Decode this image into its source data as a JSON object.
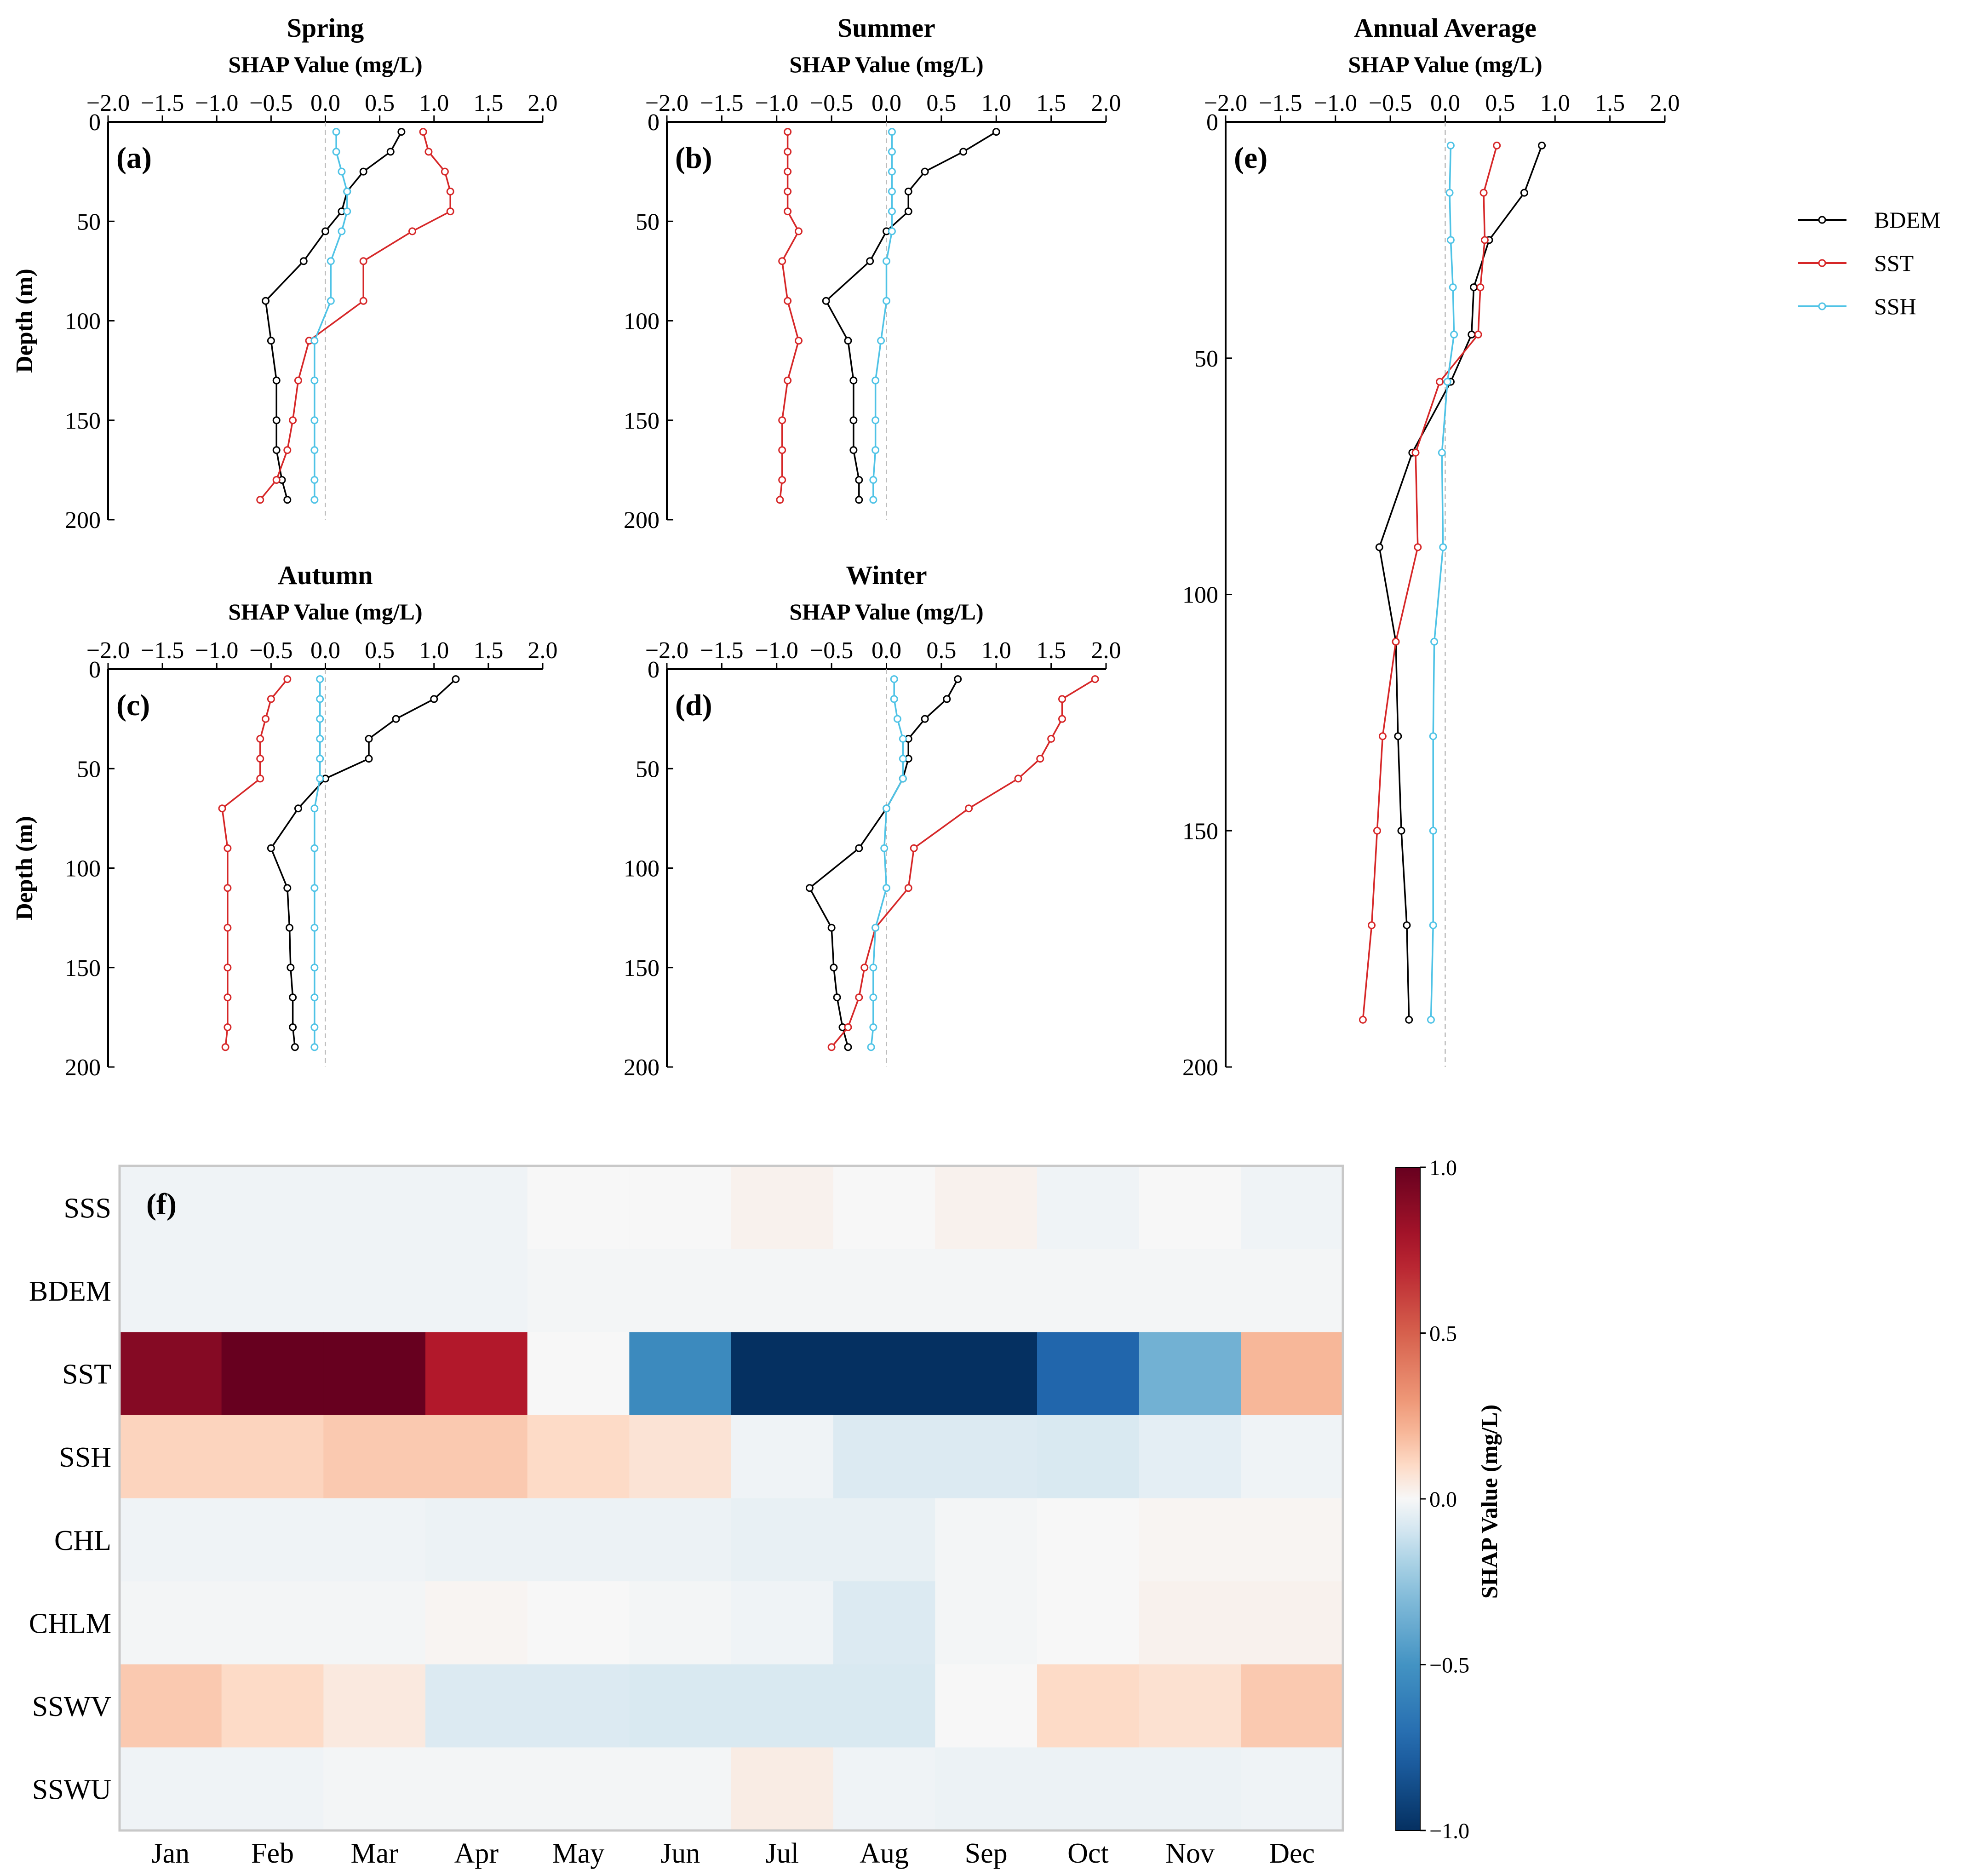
{
  "chart_data": [
    {
      "type": "line",
      "id": "a",
      "panel_label": "(a)",
      "title": "Spring",
      "xlabel": "SHAP Value (mg/L)",
      "ylabel": "Depth (m)",
      "xlim": [
        -2.0,
        2.0
      ],
      "ylim": [
        0,
        200
      ],
      "xticks": [
        "−2.0",
        "−1.5",
        "−1.0",
        "−0.5",
        "0.0",
        "0.5",
        "1.0",
        "1.5",
        "2.0"
      ],
      "yticks": [
        "0",
        "50",
        "100",
        "150",
        "200"
      ],
      "series": [
        {
          "name": "BDEM",
          "color": "#000000",
          "x": [
            0.7,
            0.6,
            0.35,
            0.2,
            0.15,
            0.0,
            -0.2,
            -0.55,
            -0.5,
            -0.45,
            -0.45,
            -0.45,
            -0.4,
            -0.35
          ],
          "y": [
            5,
            15,
            25,
            35,
            45,
            55,
            70,
            90,
            110,
            130,
            150,
            165,
            180,
            190
          ]
        },
        {
          "name": "SST",
          "color": "#d62728",
          "x": [
            0.9,
            0.95,
            1.1,
            1.15,
            1.15,
            0.8,
            0.35,
            0.35,
            -0.15,
            -0.25,
            -0.3,
            -0.35,
            -0.45,
            -0.6
          ],
          "y": [
            5,
            15,
            25,
            35,
            45,
            55,
            70,
            90,
            110,
            130,
            150,
            165,
            180,
            190
          ]
        },
        {
          "name": "SSH",
          "color": "#4fc3e6",
          "x": [
            0.1,
            0.1,
            0.15,
            0.2,
            0.2,
            0.15,
            0.05,
            0.05,
            -0.1,
            -0.1,
            -0.1,
            -0.1,
            -0.1,
            -0.1
          ],
          "y": [
            5,
            15,
            25,
            35,
            45,
            55,
            70,
            90,
            110,
            130,
            150,
            165,
            180,
            190
          ]
        }
      ]
    },
    {
      "type": "line",
      "id": "b",
      "panel_label": "(b)",
      "title": "Summer",
      "xlabel": "SHAP Value (mg/L)",
      "ylabel": "",
      "xlim": [
        -2.0,
        2.0
      ],
      "ylim": [
        0,
        200
      ],
      "xticks": [
        "−2.0",
        "−1.5",
        "−1.0",
        "−0.5",
        "0.0",
        "0.5",
        "1.0",
        "1.5",
        "2.0"
      ],
      "yticks": [
        "0",
        "50",
        "100",
        "150",
        "200"
      ],
      "series": [
        {
          "name": "BDEM",
          "color": "#000000",
          "x": [
            1.0,
            0.7,
            0.35,
            0.2,
            0.2,
            0.0,
            -0.15,
            -0.55,
            -0.35,
            -0.3,
            -0.3,
            -0.3,
            -0.25,
            -0.25
          ],
          "y": [
            5,
            15,
            25,
            35,
            45,
            55,
            70,
            90,
            110,
            130,
            150,
            165,
            180,
            190
          ]
        },
        {
          "name": "SST",
          "color": "#d62728",
          "x": [
            -0.9,
            -0.9,
            -0.9,
            -0.9,
            -0.9,
            -0.8,
            -0.95,
            -0.9,
            -0.8,
            -0.9,
            -0.95,
            -0.95,
            -0.95,
            -0.97
          ],
          "y": [
            5,
            15,
            25,
            35,
            45,
            55,
            70,
            90,
            110,
            130,
            150,
            165,
            180,
            190
          ]
        },
        {
          "name": "SSH",
          "color": "#4fc3e6",
          "x": [
            0.05,
            0.05,
            0.05,
            0.05,
            0.05,
            0.05,
            0.0,
            0.0,
            -0.05,
            -0.1,
            -0.1,
            -0.1,
            -0.12,
            -0.12
          ],
          "y": [
            5,
            15,
            25,
            35,
            45,
            55,
            70,
            90,
            110,
            130,
            150,
            165,
            180,
            190
          ]
        }
      ]
    },
    {
      "type": "line",
      "id": "c",
      "panel_label": "(c)",
      "title": "Autumn",
      "xlabel": "SHAP Value (mg/L)",
      "ylabel": "Depth (m)",
      "xlim": [
        -2.0,
        2.0
      ],
      "ylim": [
        0,
        200
      ],
      "xticks": [
        "−2.0",
        "−1.5",
        "−1.0",
        "−0.5",
        "0.0",
        "0.5",
        "1.0",
        "1.5",
        "2.0"
      ],
      "yticks": [
        "0",
        "50",
        "100",
        "150",
        "200"
      ],
      "series": [
        {
          "name": "BDEM",
          "color": "#000000",
          "x": [
            1.2,
            1.0,
            0.65,
            0.4,
            0.4,
            0.0,
            -0.25,
            -0.5,
            -0.35,
            -0.33,
            -0.32,
            -0.3,
            -0.3,
            -0.28
          ],
          "y": [
            5,
            15,
            25,
            35,
            45,
            55,
            70,
            90,
            110,
            130,
            150,
            165,
            180,
            190
          ]
        },
        {
          "name": "SST",
          "color": "#d62728",
          "x": [
            -0.35,
            -0.5,
            -0.55,
            -0.6,
            -0.6,
            -0.6,
            -0.95,
            -0.9,
            -0.9,
            -0.9,
            -0.9,
            -0.9,
            -0.9,
            -0.92
          ],
          "y": [
            5,
            15,
            25,
            35,
            45,
            55,
            70,
            90,
            110,
            130,
            150,
            165,
            180,
            190
          ]
        },
        {
          "name": "SSH",
          "color": "#4fc3e6",
          "x": [
            -0.05,
            -0.05,
            -0.05,
            -0.05,
            -0.05,
            -0.05,
            -0.1,
            -0.1,
            -0.1,
            -0.1,
            -0.1,
            -0.1,
            -0.1,
            -0.1
          ],
          "y": [
            5,
            15,
            25,
            35,
            45,
            55,
            70,
            90,
            110,
            130,
            150,
            165,
            180,
            190
          ]
        }
      ]
    },
    {
      "type": "line",
      "id": "d",
      "panel_label": "(d)",
      "title": "Winter",
      "xlabel": "SHAP Value (mg/L)",
      "ylabel": "",
      "xlim": [
        -2.0,
        2.0
      ],
      "ylim": [
        0,
        200
      ],
      "xticks": [
        "−2.0",
        "−1.5",
        "−1.0",
        "−0.5",
        "0.0",
        "0.5",
        "1.0",
        "1.5",
        "2.0"
      ],
      "yticks": [
        "0",
        "50",
        "100",
        "150",
        "200"
      ],
      "series": [
        {
          "name": "BDEM",
          "color": "#000000",
          "x": [
            0.65,
            0.55,
            0.35,
            0.2,
            0.2,
            0.15,
            0.0,
            -0.25,
            -0.7,
            -0.5,
            -0.48,
            -0.45,
            -0.4,
            -0.35
          ],
          "y": [
            5,
            15,
            25,
            35,
            45,
            55,
            70,
            90,
            110,
            130,
            150,
            165,
            180,
            190
          ]
        },
        {
          "name": "SST",
          "color": "#d62728",
          "x": [
            1.9,
            1.6,
            1.6,
            1.5,
            1.4,
            1.2,
            0.75,
            0.25,
            0.2,
            -0.1,
            -0.2,
            -0.25,
            -0.35,
            -0.5
          ],
          "y": [
            5,
            15,
            25,
            35,
            45,
            55,
            70,
            90,
            110,
            130,
            150,
            165,
            180,
            190
          ]
        },
        {
          "name": "SSH",
          "color": "#4fc3e6",
          "x": [
            0.07,
            0.07,
            0.1,
            0.15,
            0.15,
            0.15,
            0.0,
            -0.02,
            0.0,
            -0.1,
            -0.12,
            -0.12,
            -0.12,
            -0.14
          ],
          "y": [
            5,
            15,
            25,
            35,
            45,
            55,
            70,
            90,
            110,
            130,
            150,
            165,
            180,
            190
          ]
        }
      ]
    },
    {
      "type": "line",
      "id": "e",
      "panel_label": "(e)",
      "title": "Annual Average",
      "xlabel": "SHAP Value (mg/L)",
      "ylabel": "",
      "xlim": [
        -2.0,
        2.0
      ],
      "ylim": [
        0,
        200
      ],
      "xticks": [
        "−2.0",
        "−1.5",
        "−1.0",
        "−0.5",
        "0.0",
        "0.5",
        "1.0",
        "1.5",
        "2.0"
      ],
      "yticks": [
        "0",
        "50",
        "100",
        "150",
        "200"
      ],
      "series": [
        {
          "name": "BDEM",
          "color": "#000000",
          "x": [
            0.88,
            0.72,
            0.4,
            0.26,
            0.24,
            0.05,
            -0.3,
            -0.6,
            -0.45,
            -0.43,
            -0.4,
            -0.35,
            -0.33
          ],
          "y": [
            5,
            15,
            25,
            35,
            45,
            55,
            70,
            90,
            110,
            130,
            150,
            170,
            190
          ]
        },
        {
          "name": "SST",
          "color": "#d62728",
          "x": [
            0.47,
            0.35,
            0.36,
            0.32,
            0.3,
            -0.05,
            -0.27,
            -0.25,
            -0.45,
            -0.57,
            -0.62,
            -0.67,
            -0.75
          ],
          "y": [
            5,
            15,
            25,
            35,
            45,
            55,
            70,
            90,
            110,
            130,
            150,
            170,
            190
          ]
        },
        {
          "name": "SSH",
          "color": "#4fc3e6",
          "x": [
            0.05,
            0.04,
            0.05,
            0.07,
            0.08,
            0.02,
            -0.03,
            -0.02,
            -0.1,
            -0.11,
            -0.11,
            -0.11,
            -0.13
          ],
          "y": [
            5,
            15,
            25,
            35,
            45,
            55,
            70,
            90,
            110,
            130,
            150,
            170,
            190
          ]
        }
      ]
    },
    {
      "type": "heatmap",
      "id": "f",
      "panel_label": "(f)",
      "columns": [
        "Jan",
        "Feb",
        "Mar",
        "Apr",
        "May",
        "Jun",
        "Jul",
        "Aug",
        "Sep",
        "Oct",
        "Nov",
        "Dec"
      ],
      "rows": [
        "SSS",
        "BDEM",
        "SST",
        "SSH",
        "CHL",
        "CHLM",
        "SSWV",
        "SSWU"
      ],
      "values": [
        [
          -0.02,
          -0.02,
          -0.02,
          -0.02,
          0.0,
          0.0,
          0.02,
          0.0,
          0.02,
          -0.02,
          0.0,
          -0.02
        ],
        [
          -0.02,
          -0.02,
          -0.02,
          -0.02,
          -0.01,
          -0.01,
          -0.01,
          -0.01,
          -0.01,
          -0.01,
          -0.01,
          -0.01
        ],
        [
          0.9,
          1.0,
          1.0,
          0.75,
          0.0,
          -0.55,
          -1.0,
          -1.0,
          -1.0,
          -0.75,
          -0.35,
          0.2
        ],
        [
          0.12,
          0.12,
          0.15,
          0.15,
          0.1,
          0.07,
          -0.02,
          -0.07,
          -0.07,
          -0.08,
          -0.05,
          -0.02
        ],
        [
          -0.02,
          -0.02,
          -0.02,
          -0.03,
          -0.03,
          -0.03,
          -0.04,
          -0.04,
          -0.01,
          0.0,
          0.01,
          0.01
        ],
        [
          -0.01,
          -0.01,
          -0.01,
          0.01,
          0.0,
          -0.01,
          -0.02,
          -0.07,
          -0.01,
          0.0,
          0.02,
          0.02
        ],
        [
          0.15,
          0.1,
          0.05,
          -0.07,
          -0.07,
          -0.08,
          -0.08,
          -0.08,
          0.0,
          0.1,
          0.08,
          0.15
        ],
        [
          -0.02,
          -0.02,
          -0.01,
          -0.01,
          -0.01,
          -0.01,
          0.04,
          -0.02,
          -0.03,
          -0.03,
          -0.03,
          -0.02
        ]
      ],
      "colorbar": {
        "label": "SHAP Value (mg/L)",
        "range": [
          -1.0,
          1.0
        ],
        "ticks": [
          "1.0",
          "0.5",
          "0.0",
          "−0.5",
          "−1.0"
        ],
        "cmap": "RdBu_r"
      }
    }
  ],
  "legend": [
    {
      "name": "BDEM",
      "color": "#000000"
    },
    {
      "name": "SST",
      "color": "#d62728"
    },
    {
      "name": "SSH",
      "color": "#4fc3e6"
    }
  ]
}
